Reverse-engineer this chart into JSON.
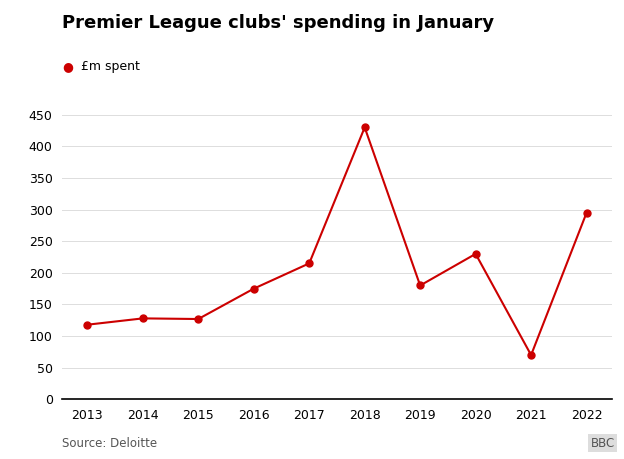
{
  "title": "Premier League clubs' spending in January",
  "legend_label": "£m spent",
  "source": "Source: Deloitte",
  "bbc_label": "BBC",
  "years": [
    2013,
    2014,
    2015,
    2016,
    2017,
    2018,
    2019,
    2020,
    2021,
    2022
  ],
  "values": [
    118,
    128,
    127,
    175,
    215,
    430,
    180,
    230,
    70,
    295
  ],
  "line_color": "#cc0000",
  "marker": "o",
  "marker_size": 5,
  "ylim": [
    0,
    450
  ],
  "yticks": [
    0,
    50,
    100,
    150,
    200,
    250,
    300,
    350,
    400,
    450
  ],
  "background_color": "#ffffff",
  "title_fontsize": 13,
  "legend_fontsize": 9,
  "tick_fontsize": 9,
  "source_fontsize": 8.5
}
